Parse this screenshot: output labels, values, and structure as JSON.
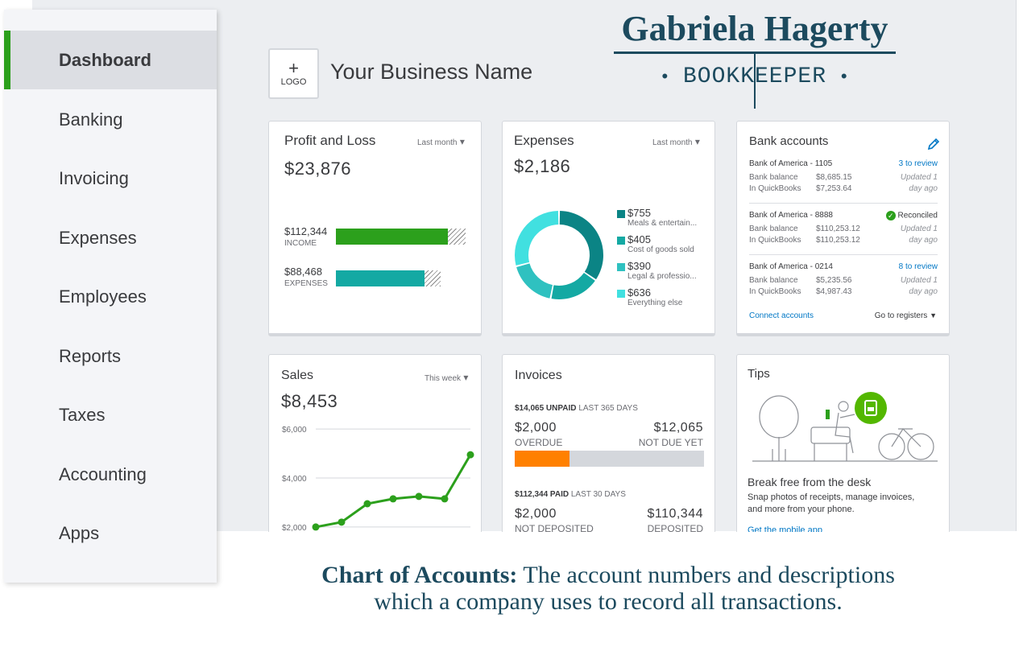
{
  "sidebar": {
    "items": [
      {
        "label": "Dashboard"
      },
      {
        "label": "Banking"
      },
      {
        "label": "Invoicing"
      },
      {
        "label": "Expenses"
      },
      {
        "label": "Employees"
      },
      {
        "label": "Reports"
      },
      {
        "label": "Taxes"
      },
      {
        "label": "Accounting"
      },
      {
        "label": "Apps"
      }
    ]
  },
  "header": {
    "logo_plus": "+",
    "logo_label": "LOGO",
    "business_name": "Your Business Name"
  },
  "brand": {
    "name": "Gabriela Hagerty",
    "role": "BOOKKEEPER",
    "bullet": "•"
  },
  "profit_loss": {
    "title": "Profit and Loss",
    "period": "Last month",
    "net": "$23,876",
    "income_amount": "$112,344",
    "income_label": "INCOME",
    "expenses_amount": "$88,468",
    "expenses_label": "EXPENSES"
  },
  "expenses": {
    "title": "Expenses",
    "period": "Last month",
    "total": "$2,186",
    "items": [
      {
        "amount": "$755",
        "label": "Meals & entertain...",
        "value": 755,
        "color": "#0b8485"
      },
      {
        "amount": "$405",
        "label": "Cost of goods sold",
        "value": 405,
        "color": "#14a9a3"
      },
      {
        "amount": "$390",
        "label": "Legal & professio...",
        "value": 390,
        "color": "#2fc1c0"
      },
      {
        "amount": "$636",
        "label": "Everything else",
        "value": 636,
        "color": "#41e0e0"
      }
    ]
  },
  "bank": {
    "title": "Bank accounts",
    "accounts": [
      {
        "name": "Bank of America - 1105",
        "status": "3 to review",
        "bank_label": "Bank balance",
        "bank_balance": "$8,685.15",
        "qb_label": "In QuickBooks",
        "qb_balance": "$7,253.64",
        "updated1": "Updated 1",
        "updated2": "day ago"
      },
      {
        "name": "Bank of America - 8888",
        "status": "Reconciled",
        "bank_label": "Bank balance",
        "bank_balance": "$110,253.12",
        "qb_label": "In QuickBooks",
        "qb_balance": "$110,253.12",
        "updated1": "Updated 1",
        "updated2": "day ago"
      },
      {
        "name": "Bank of America - 0214",
        "status": "8 to review",
        "bank_label": "Bank balance",
        "bank_balance": "$5,235.56",
        "qb_label": "In QuickBooks",
        "qb_balance": "$4,987.43",
        "updated1": "Updated 1",
        "updated2": "day ago"
      }
    ],
    "connect": "Connect accounts",
    "registers": "Go to registers",
    "check_glyph": "✓"
  },
  "sales": {
    "title": "Sales",
    "period": "This week",
    "total": "$8,453"
  },
  "invoices": {
    "title": "Invoices",
    "unpaid_amount": "$14,065 UNPAID",
    "unpaid_period": "LAST 365 DAYS",
    "overdue_amount": "$2,000",
    "overdue_label": "OVERDUE",
    "notdue_amount": "$12,065",
    "notdue_label": "NOT DUE YET",
    "paid_amount": "$112,344 PAID",
    "paid_period": "LAST 30 DAYS",
    "notdep_amount": "$2,000",
    "notdep_label": "NOT DEPOSITED",
    "dep_amount": "$110,344",
    "dep_label": "DEPOSITED"
  },
  "tips": {
    "title": "Tips",
    "heading": "Break free from the desk",
    "body1": "Snap photos of receipts, manage invoices,",
    "body2": "and more from your phone.",
    "link": "Get the mobile app"
  },
  "caption": {
    "bold": "Chart of Accounts:",
    "line1": "The account numbers and descriptions",
    "line2": "which a company uses to record all transactions."
  },
  "chart_data": {
    "type": "line",
    "title": "",
    "xlabel": "",
    "ylabel": "",
    "tick_labels": [
      "$6,000",
      "$4,000",
      "$2,000"
    ],
    "ylim": [
      1800,
      6400
    ],
    "grid": true,
    "series": [
      {
        "values": [
          2000,
          2200,
          2950,
          3150,
          3250,
          3150,
          4950
        ]
      }
    ]
  }
}
